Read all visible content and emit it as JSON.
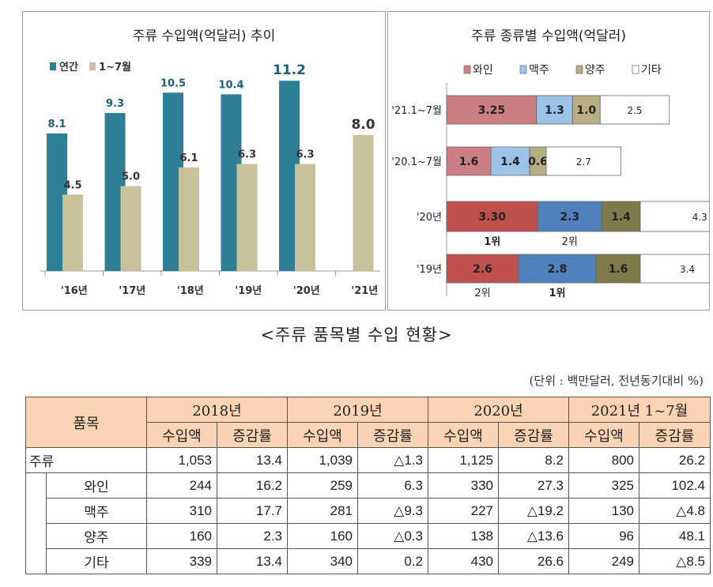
{
  "chart_data": [
    {
      "type": "bar",
      "title": "주류 수입액(억달러) 추이",
      "categories": [
        "'16년",
        "'17년",
        "'18년",
        "'19년",
        "'20년",
        "'21년"
      ],
      "series": [
        {
          "name": "연간",
          "color": "#2e7f96",
          "values": [
            8.1,
            9.3,
            10.5,
            10.4,
            11.2,
            null
          ],
          "labels": [
            "8.1",
            "9.3",
            "10.5",
            "10.4",
            "11.2",
            ""
          ]
        },
        {
          "name": "1~7월",
          "color": "#c9c19a",
          "values": [
            4.5,
            5.0,
            6.1,
            6.3,
            6.3,
            8.0
          ],
          "labels": [
            "4.5",
            "5.0",
            "6.1",
            "6.3",
            "6.3",
            "8.0"
          ]
        }
      ],
      "ylim": [
        0,
        12
      ]
    },
    {
      "type": "bar",
      "orientation": "horizontal-stacked",
      "title": "주류 종류별 수입액(억달러)",
      "categories": [
        "'21.1~7월",
        "'20.1~7월",
        "'20년",
        "'19년"
      ],
      "series": [
        {
          "name": "와인",
          "values": [
            3.25,
            1.6,
            3.3,
            2.6
          ],
          "labels": [
            "3.25",
            "1.6",
            "3.30",
            "2.6"
          ]
        },
        {
          "name": "맥주",
          "values": [
            1.3,
            1.4,
            2.3,
            2.8
          ],
          "labels": [
            "1.3",
            "1.4",
            "2.3",
            "2.8"
          ]
        },
        {
          "name": "양주",
          "values": [
            1.0,
            0.6,
            1.4,
            1.6
          ],
          "labels": [
            "1.0",
            "0.6",
            "1.4",
            "1.6"
          ]
        },
        {
          "name": "기타",
          "values": [
            2.5,
            2.7,
            4.3,
            3.4
          ],
          "labels": [
            "2.5",
            "2.7",
            "4.3",
            "3.4"
          ]
        }
      ],
      "annotations": [
        {
          "category": "'20년",
          "series": "와인",
          "text": "1위"
        },
        {
          "category": "'20년",
          "series": "맥주",
          "text": "2위"
        },
        {
          "category": "'19년",
          "series": "와인",
          "text": "2위"
        },
        {
          "category": "'19년",
          "series": "맥주",
          "text": "1위"
        }
      ]
    }
  ],
  "colors": {
    "wine": "#cc7f82",
    "wine_dark": "#c0504d",
    "beer": "#9dc3e6",
    "beer_dark": "#4f81bd",
    "liquor": "#b8ae83",
    "liquor_dark": "#7f7a4c",
    "other": "#ffffff",
    "table_header": "#fbd4b4"
  },
  "table": {
    "title": "<주류 품목별 수입 현황>",
    "unit": "(단위 : 백만달러, 전년동기대비 %)",
    "item_header": "품목",
    "years": [
      "2018년",
      "2019년",
      "2020년",
      "2021년 1~7월"
    ],
    "sub_headers": [
      "수입액",
      "증감률"
    ],
    "rows": [
      {
        "name": "주류",
        "cells": [
          "1,053",
          "13.4",
          "1,039",
          "△1.3",
          "1,125",
          "8.2",
          "800",
          "26.2"
        ]
      },
      {
        "name": "와인",
        "cells": [
          "244",
          "16.2",
          "259",
          "6.3",
          "330",
          "27.3",
          "325",
          "102.4"
        ]
      },
      {
        "name": "맥주",
        "cells": [
          "310",
          "17.7",
          "281",
          "△9.3",
          "227",
          "△19.2",
          "130",
          "△4.8"
        ]
      },
      {
        "name": "양주",
        "cells": [
          "160",
          "2.3",
          "160",
          "△0.3",
          "138",
          "△13.6",
          "96",
          "48.1"
        ]
      },
      {
        "name": "기타",
        "cells": [
          "339",
          "13.4",
          "340",
          "0.2",
          "430",
          "26.6",
          "249",
          "△8.5"
        ]
      }
    ]
  }
}
